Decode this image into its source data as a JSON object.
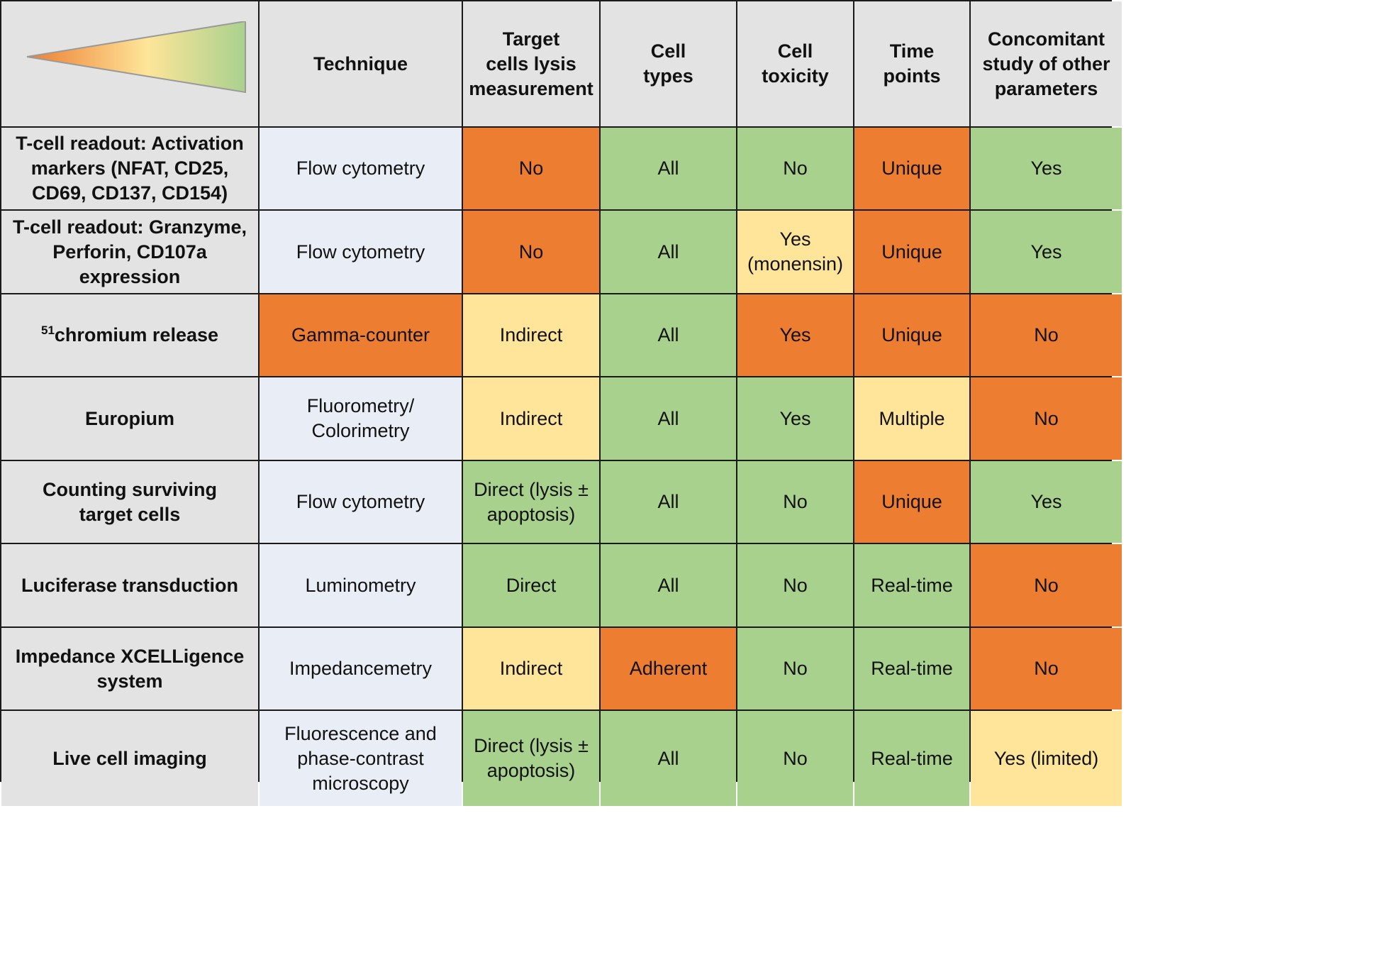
{
  "colors": {
    "header_bg": "#e3e3e3",
    "technique_bg": "#e8edf6",
    "green": "#a9d18e",
    "orange": "#ed7d31",
    "yellow": "#fee599",
    "gridline": "#1a1a1a"
  },
  "legend_icon": "orange-to-green-wedge-gradient-icon",
  "header": {
    "technique": "Technique",
    "lysis": "Target\ncells lysis\nmeasurement",
    "cell_types": "Cell\ntypes",
    "toxicity": "Cell\ntoxicity",
    "time_points": "Time\npoints",
    "concomitant": "Concomitant\nstudy of  other\nparameters"
  },
  "rows": [
    {
      "method": "T-cell readout: Activation\nmarkers (NFAT, CD25,\nCD69, CD137, CD154)",
      "technique": "Flow cytometry",
      "technique_color": "neutral",
      "lysis": "No",
      "lysis_color": "orange",
      "cell_types": "All",
      "cell_types_color": "green",
      "toxicity": "No",
      "toxicity_color": "green",
      "time_points": "Unique",
      "time_points_color": "orange",
      "concomitant": "Yes",
      "concomitant_color": "green"
    },
    {
      "method": "T-cell readout: Granzyme,\nPerforin, CD107a\nexpression",
      "technique": "Flow cytometry",
      "technique_color": "neutral",
      "lysis": "No",
      "lysis_color": "orange",
      "cell_types": "All",
      "cell_types_color": "green",
      "toxicity": "Yes\n(monensin)",
      "toxicity_color": "yellow",
      "time_points": "Unique",
      "time_points_color": "orange",
      "concomitant": "Yes",
      "concomitant_color": "green"
    },
    {
      "method_sup": "51",
      "method": "chromium release",
      "technique": "Gamma-counter",
      "technique_color": "orange",
      "lysis": "Indirect",
      "lysis_color": "yellow",
      "cell_types": "All",
      "cell_types_color": "green",
      "toxicity": "Yes",
      "toxicity_color": "orange",
      "time_points": "Unique",
      "time_points_color": "orange",
      "concomitant": "No",
      "concomitant_color": "orange"
    },
    {
      "method": "Europium",
      "technique": "Fluorometry/\nColorimetry",
      "technique_color": "neutral",
      "lysis": "Indirect",
      "lysis_color": "yellow",
      "cell_types": "All",
      "cell_types_color": "green",
      "toxicity": "Yes",
      "toxicity_color": "green",
      "time_points": "Multiple",
      "time_points_color": "yellow",
      "concomitant": "No",
      "concomitant_color": "orange"
    },
    {
      "method": "Counting surviving\ntarget cells",
      "technique": "Flow cytometry",
      "technique_color": "neutral",
      "lysis": "Direct (lysis ±\napoptosis)",
      "lysis_color": "green",
      "cell_types": "All",
      "cell_types_color": "green",
      "toxicity": "No",
      "toxicity_color": "green",
      "time_points": "Unique",
      "time_points_color": "orange",
      "concomitant": "Yes",
      "concomitant_color": "green"
    },
    {
      "method": "Luciferase transduction",
      "technique": "Luminometry",
      "technique_color": "neutral",
      "lysis": "Direct",
      "lysis_color": "green",
      "cell_types": "All",
      "cell_types_color": "green",
      "toxicity": "No",
      "toxicity_color": "green",
      "time_points": "Real-time",
      "time_points_color": "green",
      "concomitant": "No",
      "concomitant_color": "orange"
    },
    {
      "method": "Impedance XCELLigence\nsystem",
      "technique": "Impedancemetry",
      "technique_color": "neutral",
      "lysis": "Indirect",
      "lysis_color": "yellow",
      "cell_types": "Adherent",
      "cell_types_color": "orange",
      "toxicity": "No",
      "toxicity_color": "green",
      "time_points": "Real-time",
      "time_points_color": "green",
      "concomitant": "No",
      "concomitant_color": "orange"
    },
    {
      "method": "Live cell imaging",
      "technique": "Fluorescence and\nphase-contrast\nmicroscopy",
      "technique_color": "neutral",
      "lysis": "Direct (lysis ±\napoptosis)",
      "lysis_color": "green",
      "cell_types": "All",
      "cell_types_color": "green",
      "toxicity": "No",
      "toxicity_color": "green",
      "time_points": "Real-time",
      "time_points_color": "green",
      "concomitant": "Yes (limited)",
      "concomitant_color": "yellow"
    }
  ]
}
